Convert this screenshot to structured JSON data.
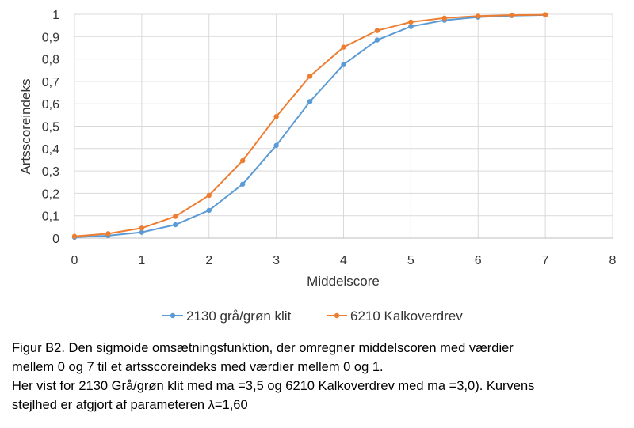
{
  "chart_data": {
    "type": "line",
    "xlabel": "Middelscore",
    "ylabel": "Artsscoreindeks",
    "xlim": [
      0,
      8
    ],
    "ylim": [
      0,
      1
    ],
    "x_ticks": [
      "0",
      "1",
      "2",
      "3",
      "4",
      "5",
      "6",
      "7",
      "8"
    ],
    "y_ticks": [
      "0",
      "0,1",
      "0,2",
      "0,3",
      "0,4",
      "0,5",
      "0,6",
      "0,7",
      "0,8",
      "0,9",
      "1"
    ],
    "grid": true,
    "legend_position": "bottom",
    "x": [
      0,
      0.5,
      1,
      1.5,
      2,
      2.5,
      3,
      3.5,
      4,
      4.5,
      5,
      5.5,
      6,
      6.5,
      7
    ],
    "series": [
      {
        "name": "2130 grå/grøn klit",
        "color": "#5b9bd5",
        "values": [
          0.004,
          0.011,
          0.026,
          0.06,
          0.124,
          0.241,
          0.414,
          0.61,
          0.775,
          0.885,
          0.945,
          0.973,
          0.987,
          0.994,
          0.997
        ]
      },
      {
        "name": "6210 Kalkoverdrev",
        "color": "#ed7d31",
        "values": [
          0.008,
          0.02,
          0.045,
          0.097,
          0.191,
          0.346,
          0.543,
          0.723,
          0.853,
          0.927,
          0.965,
          0.983,
          0.992,
          0.996,
          0.998
        ]
      }
    ]
  },
  "caption": {
    "line1": "Figur B2. Den sigmoide omsætningsfunktion, der omregner middelscoren med værdier",
    "line2": "mellem 0 og 7 til et artsscoreindeks med værdier mellem 0 og 1.",
    "line3": "Her vist for 2130 Grå/grøn klit med ma =3,5 og 6210 Kalkoverdrev med ma =3,0). Kurvens",
    "line4": "stejlhed er afgjort af parameteren λ=1,60"
  }
}
